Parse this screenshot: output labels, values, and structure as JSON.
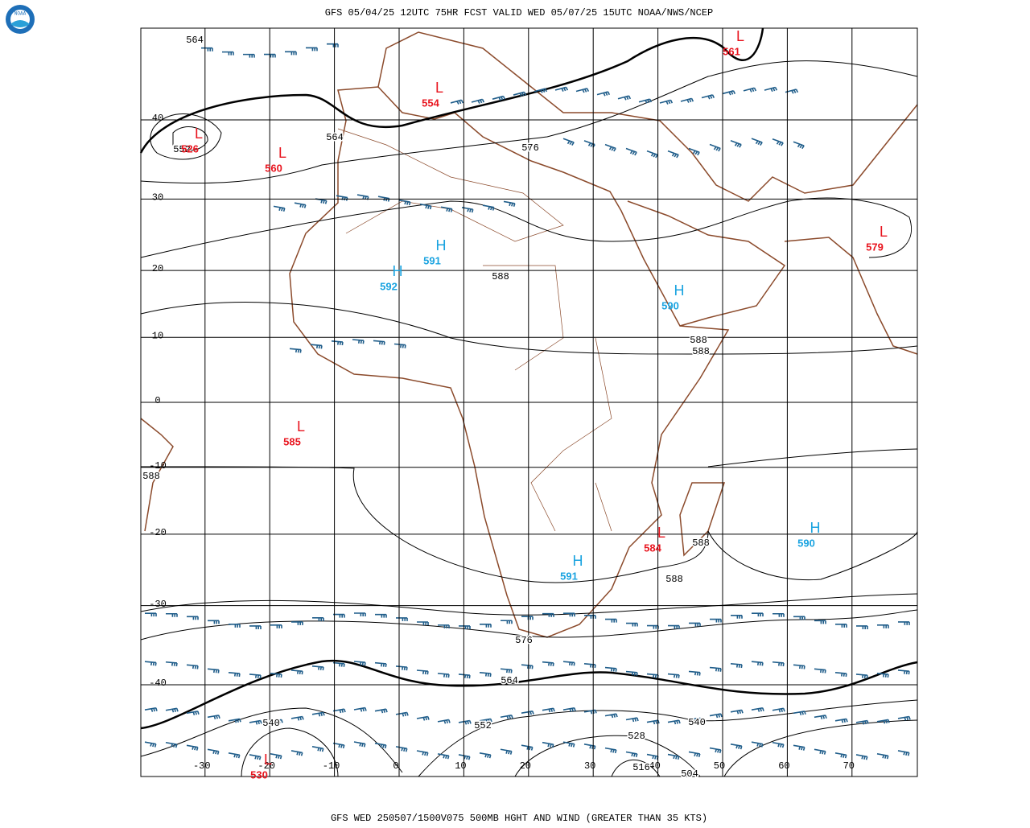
{
  "header": {
    "title": "GFS 05/04/25 12UTC 75HR FCST VALID WED 05/07/25 15UTC NOAA/NWS/NCEP",
    "logo": "NOAA"
  },
  "footer": {
    "caption": "GFS WED 250507/1500V075 500MB HGHT AND WIND (GREATER THAN 35 KTS)"
  },
  "map": {
    "lat_lines": [
      40,
      30,
      20,
      10,
      0,
      -10,
      -20,
      -30,
      -40
    ],
    "lon_lines": [
      -30,
      -20,
      -10,
      0,
      10,
      20,
      30,
      40,
      50,
      60,
      70
    ],
    "centers": [
      {
        "kind": "L",
        "value": "526"
      },
      {
        "kind": "L",
        "value": "560"
      },
      {
        "kind": "L",
        "value": "554"
      },
      {
        "kind": "L",
        "value": "561"
      },
      {
        "kind": "L",
        "value": "579"
      },
      {
        "kind": "H",
        "value": "591"
      },
      {
        "kind": "H",
        "value": "592"
      },
      {
        "kind": "H",
        "value": "590"
      },
      {
        "kind": "L",
        "value": "585"
      },
      {
        "kind": "L",
        "value": "584"
      },
      {
        "kind": "H",
        "value": "591"
      },
      {
        "kind": "H",
        "value": "590"
      },
      {
        "kind": "L",
        "value": "530"
      }
    ],
    "contour_labels": [
      "564",
      "552",
      "564",
      "576",
      "588",
      "588",
      "588",
      "588",
      "588",
      "588",
      "576",
      "564",
      "552",
      "540",
      "540",
      "528",
      "516",
      "504"
    ]
  }
}
